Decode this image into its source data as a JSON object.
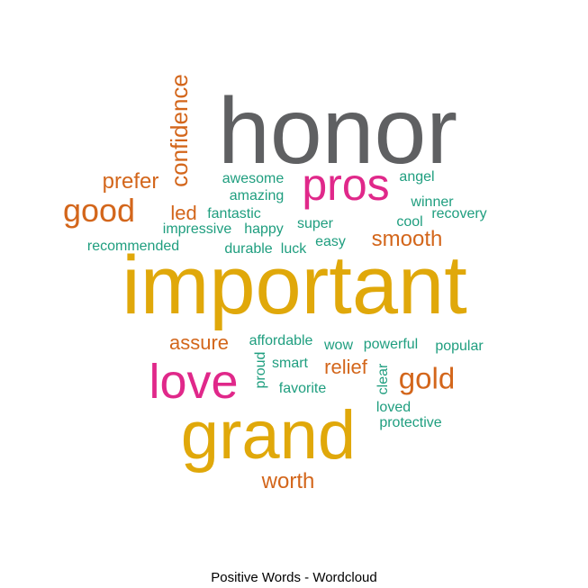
{
  "caption": "Positive Words - Wordcloud",
  "colors": {
    "gray": "#5f6062",
    "gold": "#e0a80a",
    "pink": "#e0288a",
    "orange": "#d3661b",
    "teal": "#1f9e7f"
  },
  "words": [
    {
      "text": "honor",
      "color": "gray"
    },
    {
      "text": "important",
      "color": "gold"
    },
    {
      "text": "grand",
      "color": "gold"
    },
    {
      "text": "pros",
      "color": "pink"
    },
    {
      "text": "love",
      "color": "pink"
    },
    {
      "text": "good",
      "color": "orange"
    },
    {
      "text": "gold",
      "color": "orange"
    },
    {
      "text": "confidence",
      "color": "orange"
    },
    {
      "text": "prefer",
      "color": "orange"
    },
    {
      "text": "smooth",
      "color": "orange"
    },
    {
      "text": "assure",
      "color": "orange"
    },
    {
      "text": "relief",
      "color": "orange"
    },
    {
      "text": "worth",
      "color": "orange"
    },
    {
      "text": "led",
      "color": "orange"
    },
    {
      "text": "awesome",
      "color": "teal"
    },
    {
      "text": "amazing",
      "color": "teal"
    },
    {
      "text": "angel",
      "color": "teal"
    },
    {
      "text": "winner",
      "color": "teal"
    },
    {
      "text": "recovery",
      "color": "teal"
    },
    {
      "text": "fantastic",
      "color": "teal"
    },
    {
      "text": "impressive",
      "color": "teal"
    },
    {
      "text": "happy",
      "color": "teal"
    },
    {
      "text": "super",
      "color": "teal"
    },
    {
      "text": "cool",
      "color": "teal"
    },
    {
      "text": "recommended",
      "color": "teal"
    },
    {
      "text": "durable",
      "color": "teal"
    },
    {
      "text": "luck",
      "color": "teal"
    },
    {
      "text": "easy",
      "color": "teal"
    },
    {
      "text": "affordable",
      "color": "teal"
    },
    {
      "text": "wow",
      "color": "teal"
    },
    {
      "text": "powerful",
      "color": "teal"
    },
    {
      "text": "popular",
      "color": "teal"
    },
    {
      "text": "proud",
      "color": "teal"
    },
    {
      "text": "smart",
      "color": "teal"
    },
    {
      "text": "favorite",
      "color": "teal"
    },
    {
      "text": "clear",
      "color": "teal"
    },
    {
      "text": "loved",
      "color": "teal"
    },
    {
      "text": "protective",
      "color": "teal"
    }
  ]
}
